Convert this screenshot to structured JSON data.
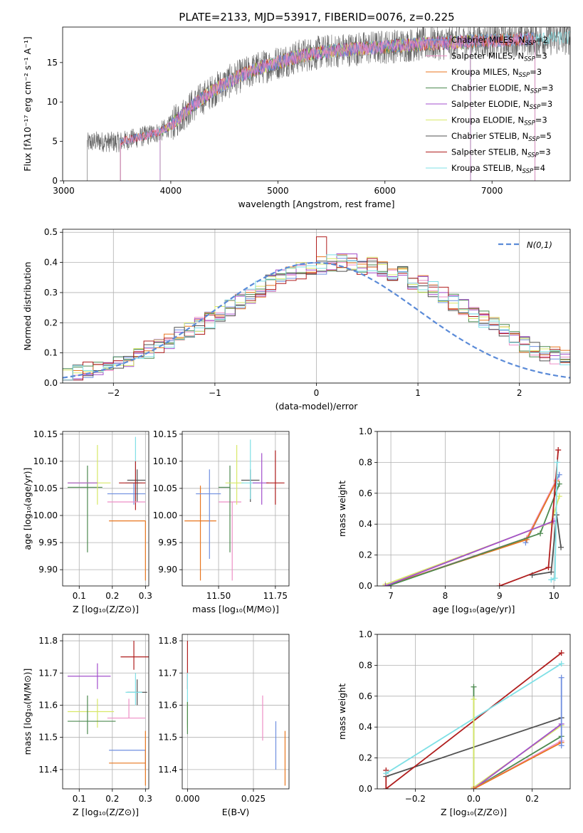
{
  "colors": {
    "chabrier_miles": "#6f8fe0",
    "salpeter_miles": "#ee8fc6",
    "kroupa_miles": "#e8761f",
    "chabrier_elodie": "#4d8a50",
    "salpeter_elodie": "#a34fcc",
    "kroupa_elodie": "#d8e868",
    "chabrier_stelib": "#525252",
    "salpeter_stelib": "#b01e1e",
    "kroupa_stelib": "#7fe0e6",
    "normal": "#5b8bd8"
  },
  "chart_data": [
    {
      "type": "line",
      "panel": "spectrum",
      "title": "PLATE=2133, MJD=53917, FIBERID=0076, z=0.225",
      "xlabel": "wavelength [Angstrom, rest frame]",
      "ylabel": "Flux [fλ10⁻¹⁷ erg cm⁻² s⁻¹ A⁻¹]",
      "xlim": [
        2990,
        7730
      ],
      "ylim": [
        0,
        19.5
      ],
      "xticks": [
        3000,
        4000,
        5000,
        6000,
        7000
      ],
      "yticks": [
        0,
        5,
        10,
        15
      ],
      "legend_position": "right",
      "legend": [
        {
          "key": "chabrier_miles",
          "label": "Chabrier MILES, N",
          "sub": "SSP",
          "suffix": "=2"
        },
        {
          "key": "salpeter_miles",
          "label": "Salpeter MILES, N",
          "sub": "SSP",
          "suffix": "=3"
        },
        {
          "key": "kroupa_miles",
          "label": "Kroupa MILES, N",
          "sub": "SSP",
          "suffix": "=3"
        },
        {
          "key": "chabrier_elodie",
          "label": "Chabrier ELODIE, N",
          "sub": "SSP",
          "suffix": "=3"
        },
        {
          "key": "salpeter_elodie",
          "label": "Salpeter ELODIE, N",
          "sub": "SSP",
          "suffix": "=3"
        },
        {
          "key": "kroupa_elodie",
          "label": "Kroupa ELODIE, N",
          "sub": "SSP",
          "suffix": "=3"
        },
        {
          "key": "chabrier_stelib",
          "label": "Chabrier STELIB, N",
          "sub": "SSP",
          "suffix": "=5"
        },
        {
          "key": "salpeter_stelib",
          "label": "Salpeter STELIB, N",
          "sub": "SSP",
          "suffix": "=3"
        },
        {
          "key": "kroupa_stelib",
          "label": "Kroupa STELIB, N",
          "sub": "SSP",
          "suffix": "=4"
        }
      ],
      "continuum": {
        "x": [
          3220,
          3300,
          3500,
          3700,
          3900,
          4000,
          4200,
          4400,
          4600,
          4800,
          5000,
          5200,
          5400,
          5600,
          5800,
          6000,
          6200,
          6400,
          6600,
          6800,
          7000,
          7200,
          7400,
          7700
        ],
        "y": [
          4.8,
          5.0,
          4.9,
          5.5,
          6.2,
          7.0,
          9.5,
          11.5,
          13.0,
          14.2,
          15.0,
          15.8,
          16.3,
          16.6,
          16.8,
          17.0,
          17.2,
          17.4,
          17.5,
          17.7,
          17.8,
          17.9,
          18.0,
          18.1
        ]
      },
      "series_ranges": [
        {
          "key": "chabrier_stelib",
          "x": [
            3220,
            7730
          ]
        },
        {
          "key": "kroupa_stelib",
          "x": [
            3530,
            7730
          ]
        },
        {
          "key": "kroupa_miles",
          "x": [
            3530,
            7400
          ]
        },
        {
          "key": "salpeter_stelib",
          "x": [
            3530,
            7400
          ]
        },
        {
          "key": "chabrier_elodie",
          "x": [
            3900,
            6800
          ]
        },
        {
          "key": "kroupa_elodie",
          "x": [
            3900,
            6800
          ]
        },
        {
          "key": "salpeter_elodie",
          "x": [
            3900,
            6800
          ]
        },
        {
          "key": "chabrier_miles",
          "x": [
            3530,
            7400
          ]
        },
        {
          "key": "salpeter_miles",
          "x": [
            3530,
            7400
          ]
        }
      ]
    },
    {
      "type": "bar",
      "panel": "residual_histogram",
      "xlabel": "(data-model)/error",
      "ylabel": "Normed distribution",
      "xlim": [
        -2.5,
        2.5
      ],
      "ylim": [
        0,
        0.51
      ],
      "xticks": [
        -2,
        -1,
        0,
        1,
        2
      ],
      "yticks": [
        0.0,
        0.1,
        0.2,
        0.3,
        0.4,
        0.5
      ],
      "grid": true,
      "legend_position": "top-right",
      "legend_label": "N(0,1)",
      "bin_width": 0.1,
      "bin_start": -2.5,
      "base_values": [
        0.02,
        0.03,
        0.04,
        0.05,
        0.06,
        0.07,
        0.08,
        0.09,
        0.11,
        0.12,
        0.14,
        0.16,
        0.17,
        0.19,
        0.21,
        0.23,
        0.25,
        0.27,
        0.29,
        0.31,
        0.33,
        0.35,
        0.36,
        0.37,
        0.38,
        0.39,
        0.4,
        0.4,
        0.4,
        0.39,
        0.39,
        0.38,
        0.37,
        0.36,
        0.34,
        0.33,
        0.31,
        0.29,
        0.27,
        0.25,
        0.23,
        0.21,
        0.19,
        0.17,
        0.15,
        0.13,
        0.11,
        0.1,
        0.09,
        0.08
      ]
    },
    {
      "type": "scatter",
      "panel": "age_vs_Z",
      "xlabel": "Z [log₁₀(Z/Z⊙)]",
      "ylabel": "age  [log₁₀(age/yr)]",
      "xlim": [
        0.05,
        0.31
      ],
      "ylim": [
        9.87,
        10.155
      ],
      "xticks": [
        0.1,
        0.2,
        0.3
      ],
      "yticks": [
        9.9,
        9.95,
        10.0,
        10.05,
        10.1,
        10.15
      ],
      "grid": true,
      "points": [
        {
          "key": "chabrier_elodie",
          "x": 0.125,
          "xerr": [
            0.06,
            0.045
          ],
          "y": 10.052,
          "yerr": [
            0.12,
            0.04
          ]
        },
        {
          "key": "kroupa_elodie",
          "x": 0.155,
          "xerr": [
            0.09,
            0.04
          ],
          "y": 10.06,
          "yerr": [
            0.04,
            0.07
          ]
        },
        {
          "key": "salpeter_elodie",
          "x": 0.155,
          "xerr": [
            0.09,
            0.0
          ],
          "y": 10.06,
          "yerr": [
            0.0,
            0.0
          ]
        },
        {
          "key": "chabrier_miles",
          "x": 0.265,
          "xerr": [
            0.08,
            0.035
          ],
          "y": 10.04,
          "yerr": [
            0.02,
            0.02
          ]
        },
        {
          "key": "kroupa_stelib",
          "x": 0.27,
          "xerr": [
            0.03,
            0.02
          ],
          "y": 10.06,
          "yerr": [
            0.03,
            0.085
          ]
        },
        {
          "key": "chabrier_stelib",
          "x": 0.275,
          "xerr": [
            0.03,
            0.025
          ],
          "y": 10.065,
          "yerr": [
            0.04,
            0.02
          ]
        },
        {
          "key": "salpeter_stelib",
          "x": 0.27,
          "xerr": [
            0.05,
            0.03
          ],
          "y": 10.06,
          "yerr": [
            0.05,
            0.04
          ]
        },
        {
          "key": "salpeter_miles",
          "x": 0.25,
          "xerr": [
            0.065,
            0.05
          ],
          "y": 10.025,
          "yerr": [
            0.0,
            0.0
          ]
        },
        {
          "key": "kroupa_miles",
          "x": 0.3,
          "xerr": [
            0.11,
            0.0
          ],
          "y": 9.99,
          "yerr": [
            0.11,
            0.0
          ]
        }
      ]
    },
    {
      "type": "scatter",
      "panel": "age_vs_mass",
      "xlabel": "mass [log₁₀(M/M⊙)]",
      "ylabel": "",
      "xlim": [
        11.34,
        11.81
      ],
      "ylim": [
        9.87,
        10.155
      ],
      "xticks": [
        11.5,
        11.75
      ],
      "yticks": [
        9.9,
        9.95,
        10.0,
        10.05,
        10.1,
        10.15
      ],
      "grid": true,
      "points": [
        {
          "key": "kroupa_miles",
          "x": 11.42,
          "xerr": [
            0.07,
            0.07
          ],
          "y": 9.99,
          "yerr": [
            0.11,
            0.065
          ]
        },
        {
          "key": "chabrier_miles",
          "x": 11.46,
          "xerr": [
            0.06,
            0.05
          ],
          "y": 10.04,
          "yerr": [
            0.12,
            0.045
          ]
        },
        {
          "key": "salpeter_miles",
          "x": 11.56,
          "xerr": [
            0.06,
            0.04
          ],
          "y": 10.025,
          "yerr": [
            0.145,
            0.0
          ]
        },
        {
          "key": "chabrier_elodie",
          "x": 11.55,
          "xerr": [
            0.05,
            0.0
          ],
          "y": 10.052,
          "yerr": [
            0.12,
            0.04
          ]
        },
        {
          "key": "kroupa_elodie",
          "x": 11.58,
          "xerr": [
            0.05,
            0.03
          ],
          "y": 10.06,
          "yerr": [
            0.04,
            0.07
          ]
        },
        {
          "key": "chabrier_stelib",
          "x": 11.64,
          "xerr": [
            0.04,
            0.04
          ],
          "y": 10.065,
          "yerr": [
            0.04,
            0.02
          ]
        },
        {
          "key": "kroupa_stelib",
          "x": 11.64,
          "xerr": [
            0.04,
            0.04
          ],
          "y": 10.06,
          "yerr": [
            0.03,
            0.08
          ]
        },
        {
          "key": "salpeter_elodie",
          "x": 11.69,
          "xerr": [
            0.04,
            0.03
          ],
          "y": 10.06,
          "yerr": [
            0.04,
            0.055
          ]
        },
        {
          "key": "salpeter_stelib",
          "x": 11.75,
          "xerr": [
            0.04,
            0.04
          ],
          "y": 10.06,
          "yerr": [
            0.04,
            0.06
          ]
        }
      ]
    },
    {
      "type": "line",
      "panel": "mass_weight_vs_age",
      "xlabel": "age  [log₁₀(age/yr)]",
      "ylabel": "mass weight",
      "xlim": [
        6.75,
        10.3
      ],
      "ylim": [
        0,
        1.0
      ],
      "xticks": [
        7,
        8,
        9,
        10
      ],
      "yticks": [
        0.0,
        0.2,
        0.4,
        0.6,
        0.8,
        1.0
      ],
      "grid": true,
      "series": [
        {
          "key": "chabrier_miles",
          "x": [
            9.48,
            10.1
          ],
          "y": [
            0.28,
            0.72
          ]
        },
        {
          "key": "salpeter_miles",
          "x": [
            6.9,
            9.5,
            10.05
          ],
          "y": [
            0.0,
            0.31,
            0.69
          ]
        },
        {
          "key": "kroupa_miles",
          "x": [
            6.9,
            9.5,
            10.05
          ],
          "y": [
            0.0,
            0.3,
            0.68
          ]
        },
        {
          "key": "chabrier_elodie",
          "x": [
            6.95,
            9.75,
            10.1
          ],
          "y": [
            0.0,
            0.34,
            0.66
          ]
        },
        {
          "key": "kroupa_elodie",
          "x": [
            6.9,
            9.95,
            10.1
          ],
          "y": [
            0.01,
            0.41,
            0.58
          ]
        },
        {
          "key": "salpeter_elodie",
          "x": [
            6.9,
            10.0
          ],
          "y": [
            0.0,
            0.42
          ]
        },
        {
          "key": "chabrier_stelib",
          "x": [
            9.6,
            9.95,
            10.05,
            10.13
          ],
          "y": [
            0.07,
            0.09,
            0.46,
            0.25
          ]
        },
        {
          "key": "salpeter_stelib",
          "x": [
            9.0,
            9.9,
            10.08
          ],
          "y": [
            0.0,
            0.12,
            0.88
          ]
        },
        {
          "key": "kroupa_stelib",
          "x": [
            9.95,
            10.02,
            10.06
          ],
          "y": [
            0.04,
            0.05,
            0.8
          ]
        }
      ]
    },
    {
      "type": "scatter",
      "panel": "mass_vs_Z",
      "xlabel": "Z [log₁₀(Z/Z⊙)]",
      "ylabel": "mass [log₁₀(M/M⊙)]",
      "xlim": [
        0.05,
        0.31
      ],
      "ylim": [
        11.34,
        11.82
      ],
      "xticks": [
        0.1,
        0.2,
        0.3
      ],
      "yticks": [
        11.4,
        11.5,
        11.6,
        11.7,
        11.8
      ],
      "grid": true,
      "points": [
        {
          "key": "salpeter_elodie",
          "x": 0.155,
          "xerr": [
            0.09,
            0.04
          ],
          "y": 11.69,
          "yerr": [
            0.04,
            0.04
          ]
        },
        {
          "key": "kroupa_elodie",
          "x": 0.155,
          "xerr": [
            0.09,
            0.05
          ],
          "y": 11.58,
          "yerr": [
            0.05,
            0.04
          ]
        },
        {
          "key": "chabrier_elodie",
          "x": 0.125,
          "xerr": [
            0.06,
            0.085
          ],
          "y": 11.55,
          "yerr": [
            0.04,
            0.08
          ]
        },
        {
          "key": "salpeter_stelib",
          "x": 0.265,
          "xerr": [
            0.04,
            0.045
          ],
          "y": 11.75,
          "yerr": [
            0.04,
            0.05
          ]
        },
        {
          "key": "chabrier_stelib",
          "x": 0.275,
          "xerr": [
            0.03,
            0.03
          ],
          "y": 11.64,
          "yerr": [
            0.04,
            0.04
          ]
        },
        {
          "key": "kroupa_stelib",
          "x": 0.27,
          "xerr": [
            0.03,
            0.02
          ],
          "y": 11.64,
          "yerr": [
            0.04,
            0.06
          ]
        },
        {
          "key": "salpeter_miles",
          "x": 0.25,
          "xerr": [
            0.065,
            0.05
          ],
          "y": 11.56,
          "yerr": [
            0.0,
            0.06
          ]
        },
        {
          "key": "chabrier_miles",
          "x": 0.3,
          "xerr": [
            0.11,
            0.0
          ],
          "y": 11.46,
          "yerr": [
            0.06,
            0.0
          ]
        },
        {
          "key": "kroupa_miles",
          "x": 0.3,
          "xerr": [
            0.11,
            0.0
          ],
          "y": 11.42,
          "yerr": [
            0.07,
            0.1
          ]
        }
      ]
    },
    {
      "type": "scatter",
      "panel": "mass_vs_ebv",
      "xlabel": "E(B-V)",
      "ylabel": "",
      "xlim": [
        -0.002,
        0.0385
      ],
      "ylim": [
        11.34,
        11.82
      ],
      "xticks": [
        0.0,
        0.025
      ],
      "yticks": [
        11.4,
        11.5,
        11.6,
        11.7,
        11.8
      ],
      "grid": true,
      "points": [
        {
          "key": "salpeter_stelib",
          "x": 0.0,
          "xerr": [
            0,
            0
          ],
          "y": 11.71,
          "yerr": [
            0.06,
            0.09
          ]
        },
        {
          "key": "kroupa_stelib",
          "x": 0.0,
          "xerr": [
            0,
            0
          ],
          "y": 11.6,
          "yerr": [
            0.06,
            0.1
          ]
        },
        {
          "key": "kroupa_elodie",
          "x": 0.0,
          "xerr": [
            0,
            0
          ],
          "y": 11.58,
          "yerr": [
            0.05,
            0.03
          ]
        },
        {
          "key": "chabrier_elodie",
          "x": 0.0,
          "xerr": [
            0,
            0
          ],
          "y": 11.55,
          "yerr": [
            0.04,
            0.06
          ]
        },
        {
          "key": "salpeter_miles",
          "x": 0.0285,
          "xerr": [
            0,
            0
          ],
          "y": 11.56,
          "yerr": [
            0.07,
            0.07
          ]
        },
        {
          "key": "chabrier_miles",
          "x": 0.0335,
          "xerr": [
            0,
            0
          ],
          "y": 11.46,
          "yerr": [
            0.06,
            0.09
          ]
        },
        {
          "key": "kroupa_miles",
          "x": 0.037,
          "xerr": [
            0,
            0
          ],
          "y": 11.42,
          "yerr": [
            0.07,
            0.1
          ]
        }
      ]
    },
    {
      "type": "line",
      "panel": "mass_weight_vs_Z",
      "xlabel": "Z [log₁₀(Z/Z⊙)]",
      "ylabel": "mass weight",
      "xlim": [
        -0.33,
        0.33
      ],
      "ylim": [
        0,
        1.0
      ],
      "xticks": [
        -0.2,
        0.0,
        0.2
      ],
      "yticks": [
        0.0,
        0.2,
        0.4,
        0.6,
        0.8,
        1.0
      ],
      "grid": true,
      "series": [
        {
          "key": "chabrier_stelib",
          "x": [
            -0.3,
            0.3
          ],
          "y": [
            0.08,
            0.46
          ]
        },
        {
          "key": "salpeter_stelib",
          "x": [
            -0.3,
            -0.3,
            0.3
          ],
          "y": [
            0.12,
            0.0,
            0.88
          ]
        },
        {
          "key": "kroupa_stelib",
          "x": [
            -0.3,
            0.3
          ],
          "y": [
            0.1,
            0.81
          ]
        },
        {
          "key": "chabrier_elodie",
          "x": [
            0.0,
            0.0,
            0.3
          ],
          "y": [
            0.66,
            0.0,
            0.34
          ]
        },
        {
          "key": "kroupa_elodie",
          "x": [
            0.0,
            0.0,
            0.3
          ],
          "y": [
            0.58,
            0.01,
            0.41
          ]
        },
        {
          "key": "salpeter_elodie",
          "x": [
            0.0,
            0.3
          ],
          "y": [
            0.0,
            0.42
          ]
        },
        {
          "key": "salpeter_miles",
          "x": [
            0.0,
            0.3
          ],
          "y": [
            0.0,
            0.31
          ]
        },
        {
          "key": "kroupa_miles",
          "x": [
            0.0,
            0.3
          ],
          "y": [
            0.0,
            0.3
          ]
        },
        {
          "key": "chabrier_miles",
          "x": [
            0.3,
            0.3
          ],
          "y": [
            0.28,
            0.72
          ]
        }
      ]
    }
  ]
}
